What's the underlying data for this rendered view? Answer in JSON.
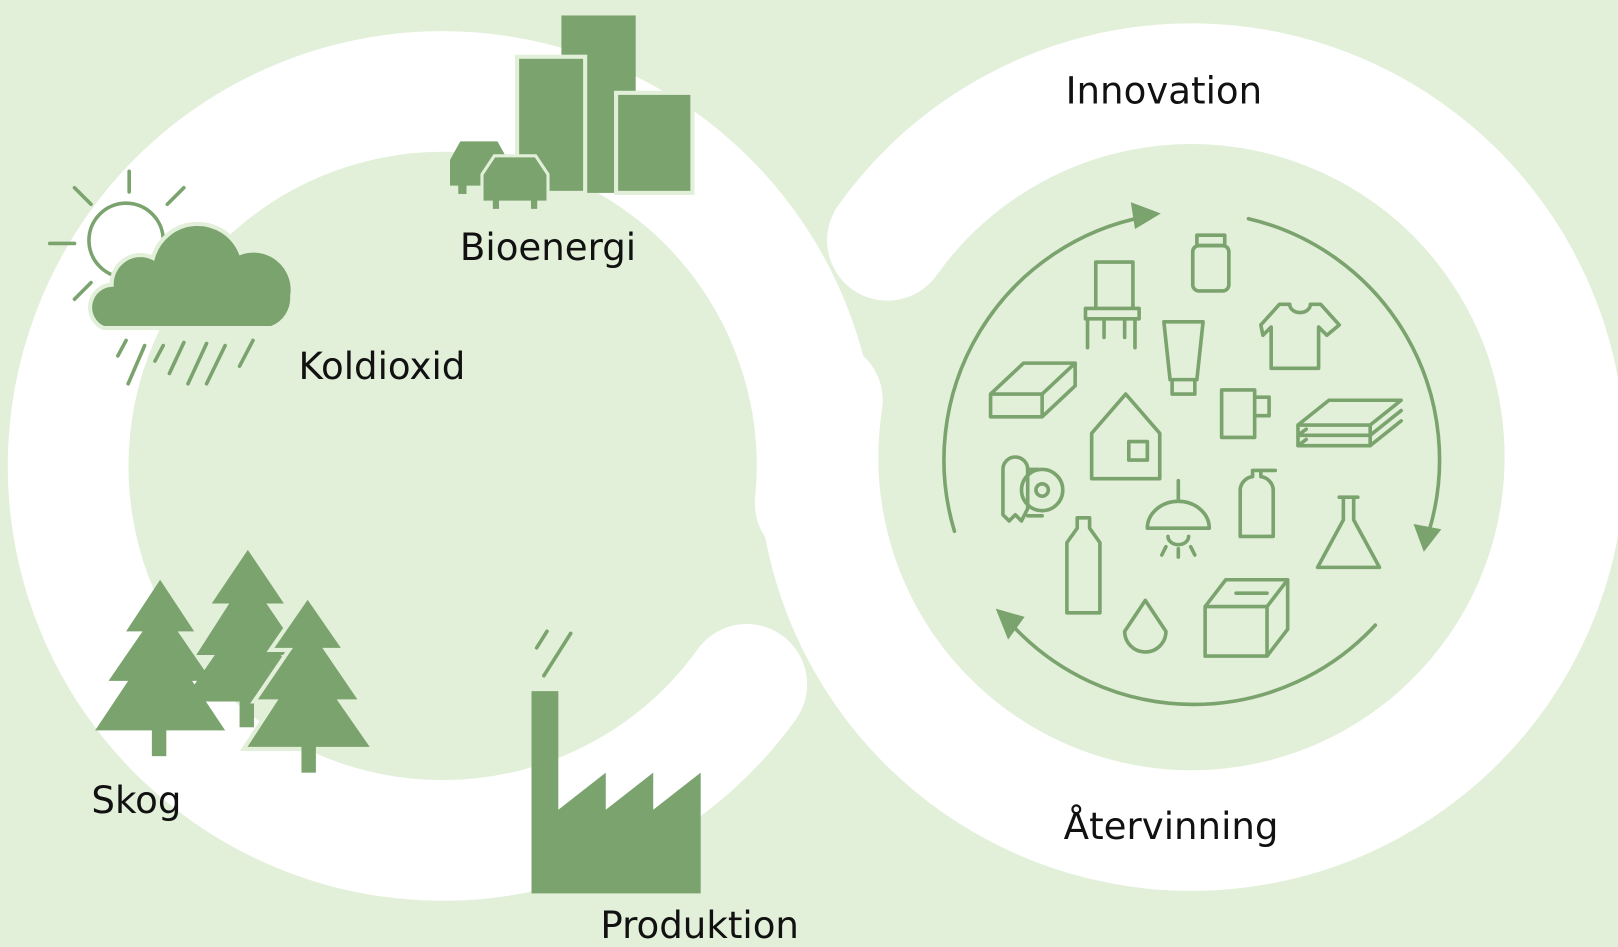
{
  "nodes": [
    {
      "label": "Innovation"
    },
    {
      "label": "Bioenergi"
    },
    {
      "label": "Koldioxid"
    },
    {
      "label": "Skog"
    },
    {
      "label": "Produktion"
    },
    {
      "label": "Återvinning"
    }
  ]
}
